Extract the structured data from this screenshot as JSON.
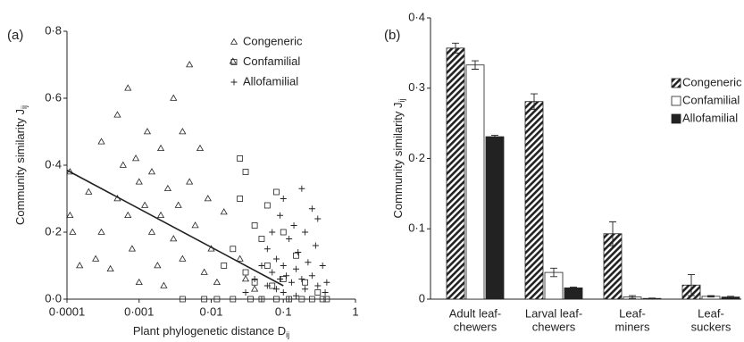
{
  "chart_data": [
    {
      "type": "scatter",
      "panel_label": "(a)",
      "xlabel": {
        "text": "Plant phylogenetic distance D",
        "sub": "ij"
      },
      "ylabel": {
        "text": "Community similarity J",
        "sub": "ij"
      },
      "xscale": "log",
      "xlim": [
        0.0001,
        1
      ],
      "xticks": [
        {
          "value": 0.0001,
          "label": "0·0001"
        },
        {
          "value": 0.001,
          "label": "0·001"
        },
        {
          "value": 0.01,
          "label": "0·01"
        },
        {
          "value": 0.1,
          "label": "0·1"
        },
        1
      ],
      "ylim": [
        0,
        0.8
      ],
      "yticks": [
        {
          "value": 0,
          "label": "0·0"
        },
        {
          "value": 0.2,
          "label": "0·2"
        },
        {
          "value": 0.4,
          "label": "0·4"
        },
        {
          "value": 0.6,
          "label": "0·6"
        },
        {
          "value": 0.8,
          "label": "0·8"
        }
      ],
      "series": [
        {
          "name": "Congeneric",
          "marker": "triangle",
          "color": "#222",
          "x": [
            0.00011,
            0.00012,
            0.00011,
            0.00015,
            0.0002,
            0.00025,
            0.0003,
            0.0003,
            0.0004,
            0.0005,
            0.0005,
            0.0006,
            0.0007,
            0.0007,
            0.0008,
            0.0009,
            0.001,
            0.001,
            0.0012,
            0.0013,
            0.0015,
            0.0015,
            0.0018,
            0.002,
            0.002,
            0.0022,
            0.0025,
            0.003,
            0.003,
            0.0035,
            0.004,
            0.004,
            0.005,
            0.005,
            0.006,
            0.007,
            0.008,
            0.009,
            0.01,
            0.012,
            0.015,
            0.02,
            0.025,
            0.03,
            0.04
          ],
          "values": [
            0.38,
            0.2,
            0.25,
            0.1,
            0.32,
            0.12,
            0.47,
            0.2,
            0.09,
            0.55,
            0.3,
            0.4,
            0.63,
            0.25,
            0.15,
            0.42,
            0.35,
            0.05,
            0.28,
            0.5,
            0.2,
            0.38,
            0.1,
            0.45,
            0.25,
            0.04,
            0.33,
            0.6,
            0.18,
            0.28,
            0.5,
            0.12,
            0.7,
            0.35,
            0.22,
            0.45,
            0.08,
            0.3,
            0.15,
            0.05,
            0.26,
            0.71,
            0.12,
            0.06,
            0.03
          ]
        },
        {
          "name": "Confamilial",
          "marker": "square",
          "color": "#222",
          "x": [
            0.004,
            0.008,
            0.012,
            0.015,
            0.02,
            0.02,
            0.025,
            0.025,
            0.03,
            0.03,
            0.035,
            0.04,
            0.04,
            0.05,
            0.05,
            0.06,
            0.06,
            0.07,
            0.08,
            0.08,
            0.1,
            0.1,
            0.12,
            0.15,
            0.18,
            0.2,
            0.25,
            0.3,
            0.35,
            0.4
          ],
          "values": [
            0,
            0,
            0,
            0.1,
            0.15,
            0,
            0.42,
            0.3,
            0.38,
            0.08,
            0,
            0.22,
            0.05,
            0.18,
            0,
            0.28,
            0.1,
            0.04,
            0.32,
            0,
            0.2,
            0.06,
            0,
            0.13,
            0,
            0.05,
            0,
            0.02,
            0,
            0
          ]
        },
        {
          "name": "Allofamilial",
          "marker": "plus",
          "color": "#222",
          "x": [
            0.03,
            0.04,
            0.05,
            0.05,
            0.06,
            0.06,
            0.07,
            0.07,
            0.08,
            0.08,
            0.09,
            0.09,
            0.1,
            0.1,
            0.1,
            0.11,
            0.12,
            0.12,
            0.13,
            0.14,
            0.15,
            0.15,
            0.16,
            0.18,
            0.18,
            0.2,
            0.2,
            0.22,
            0.25,
            0.25,
            0.28,
            0.3,
            0.3,
            0.35,
            0.38,
            0.4
          ],
          "values": [
            0.02,
            0.06,
            0.1,
            0,
            0.04,
            0.15,
            0.08,
            0.2,
            0.03,
            0.12,
            0.06,
            0.25,
            0.1,
            0.02,
            0.3,
            0.07,
            0.18,
            0,
            0.05,
            0.22,
            0.09,
            0.01,
            0.14,
            0.33,
            0.06,
            0.2,
            0.03,
            0.11,
            0.27,
            0.07,
            0.16,
            0.04,
            0.24,
            0.1,
            0.02,
            0.05
          ]
        }
      ],
      "fit_line": {
        "x": [
          0.0001,
          0.1
        ],
        "values": [
          0.385,
          0.04
        ]
      }
    },
    {
      "type": "bar",
      "panel_label": "(b)",
      "ylabel": {
        "text": "Community similarity J",
        "sub": "ij"
      },
      "categories": [
        [
          "Adult leaf-",
          "chewers"
        ],
        [
          "Larval leaf-",
          "chewers"
        ],
        [
          "Leaf-",
          "miners"
        ],
        [
          "Leaf-",
          "suckers"
        ]
      ],
      "ylim": [
        0,
        0.4
      ],
      "yticks": [
        0,
        {
          "value": 0.1,
          "label": "0·1"
        },
        {
          "value": 0.2,
          "label": "0·2"
        },
        {
          "value": 0.3,
          "label": "0·3"
        },
        {
          "value": 0.4,
          "label": "0·4"
        }
      ],
      "series": [
        {
          "name": "Congeneric",
          "fill": "hatch",
          "color": "#222",
          "values": [
            0.357,
            0.281,
            0.093,
            0.02
          ],
          "errors": [
            0.007,
            0.011,
            0.017,
            0.015
          ]
        },
        {
          "name": "Confamilial",
          "fill": "#ffffff",
          "color": "#222",
          "values": [
            0.333,
            0.038,
            0.003,
            0.004
          ],
          "errors": [
            0.006,
            0.006,
            0.002,
            0.001
          ]
        },
        {
          "name": "Allofamilial",
          "fill": "#222222",
          "color": "#222",
          "values": [
            0.231,
            0.016,
            0.001,
            0.003
          ],
          "errors": [
            0.002,
            0.001,
            0.0005,
            0.001
          ]
        }
      ]
    }
  ]
}
